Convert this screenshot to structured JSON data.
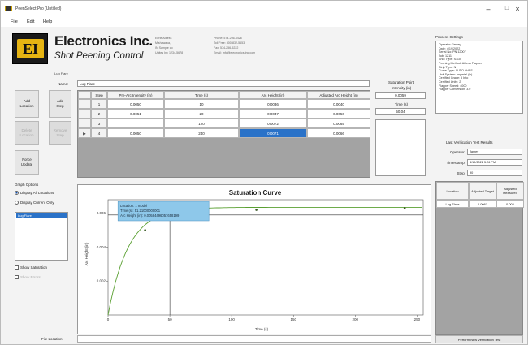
{
  "window": {
    "title": "PeenSelect Pro (Untitled)",
    "minimize": "–",
    "maximize": "□",
    "close": "×"
  },
  "menu": [
    "File",
    "Edit",
    "Help"
  ],
  "brand": {
    "logo": "EI",
    "name": "Electronics Inc.",
    "tagline": "Shot Peening Control"
  },
  "address": {
    "l1": "Eerie Adress",
    "l2": "Mishawaka,",
    "l3": "IN Sample co",
    "l4": "Unites Inc 1234-5678",
    "p1": "Phone: 574-256-5426",
    "p2": "Toll Free: 800-832-5653",
    "p3": "Fax: 574-256-5222",
    "p4": "Email: info@electronics-inc.com"
  },
  "sublabel": "Lug Flare",
  "buttons": {
    "add_location": "Add\nLocation",
    "add_step": "Add\nStep",
    "delete_location": "Delete\nLocation",
    "remove_step": "Remove\nStep",
    "force_update": "Force\nUpdate"
  },
  "name": {
    "label": "Name:",
    "value": "Lug Flare"
  },
  "table": {
    "headers": [
      "",
      "Step",
      "Pre-Arc Intensity (in)",
      "Time (s)",
      "Arc Height (in)",
      "Adjusted Arc Height (in)"
    ],
    "rows": [
      [
        "",
        "1",
        "0.0050",
        "10",
        "0.0036",
        "0.0040"
      ],
      [
        "",
        "2",
        "0.0051",
        "20",
        "0.0047",
        "0.0050"
      ],
      [
        "",
        "3",
        "",
        "120",
        "0.0072",
        "0.0065"
      ],
      [
        "▶",
        "4",
        "0.0050",
        "240",
        "0.0071",
        "0.0066"
      ]
    ]
  },
  "saturation": {
    "title": "Saturation Point",
    "intensity_label": "Intensity (in)",
    "intensity": "0.0059",
    "time_label": "Time (s)",
    "time": "50.04"
  },
  "graph_options": {
    "title": "Graph Options",
    "opt1": "Display All Locations",
    "opt2": "Display Current Only",
    "list_item": "Lug Flare",
    "show_sat": "Show Saturation",
    "show_errors": "Show Errors"
  },
  "chart_data": {
    "type": "line",
    "title": "Saturation Curve",
    "xlabel": "Time (s)",
    "ylabel": "Arc Height (in)",
    "xlim": [
      0,
      255
    ],
    "ylim": [
      0,
      0.0068
    ],
    "xticks": [
      0,
      50,
      100,
      150,
      200,
      250
    ],
    "yticks": [
      0.002,
      0.004,
      0.006
    ],
    "ytick_labels": [
      "0.002",
      "0.004",
      "0.006"
    ],
    "points": [
      {
        "x": 30,
        "y": 0.005
      },
      {
        "x": 120,
        "y": 0.0062
      },
      {
        "x": 240,
        "y": 0.0063
      }
    ],
    "saturation": {
      "x": 50.04,
      "y": 0.0059
    },
    "tooltip": [
      "Location: 1 model",
      "Time (s): 51.21000000001",
      "Arc Height (in): 0.00584496057658199"
    ],
    "grid": false,
    "legend": "none"
  },
  "process_settings": {
    "title": "Process Settings",
    "lines": [
      "Operator: Jamey",
      "Date: 4/19/2022",
      "Serial No: PN 12007",
      "Job: 1211",
      "Shot Type: S110",
      "Peening Method: Airless Flapper",
      "Strip Type: N",
      "Curve Type: AUTO AHSS",
      "Unit System: Imperial (in)",
      "Certified Grade: 5 Into",
      "Certified Units: 2",
      "Flapper Speed: 4000",
      "Flapper Conversion: 3.0"
    ]
  },
  "last_verification": {
    "title": "Last Verification Test Results",
    "operator_label": "Operator:",
    "operator": "Jamey",
    "timestamp_label": "Timestamp:",
    "timestamp": "4/19/2022 5:26 PM",
    "step_label": "Step:",
    "step": "90"
  },
  "verif_table": {
    "headers": [
      "Location",
      "Adjusted Target",
      "Adjusted Measured"
    ],
    "row": [
      "Lug Flare",
      "0.0061",
      "0.006"
    ]
  },
  "file_location": {
    "label": "File Location:",
    "value": ""
  },
  "perform_button": "Perform New Verification Test"
}
